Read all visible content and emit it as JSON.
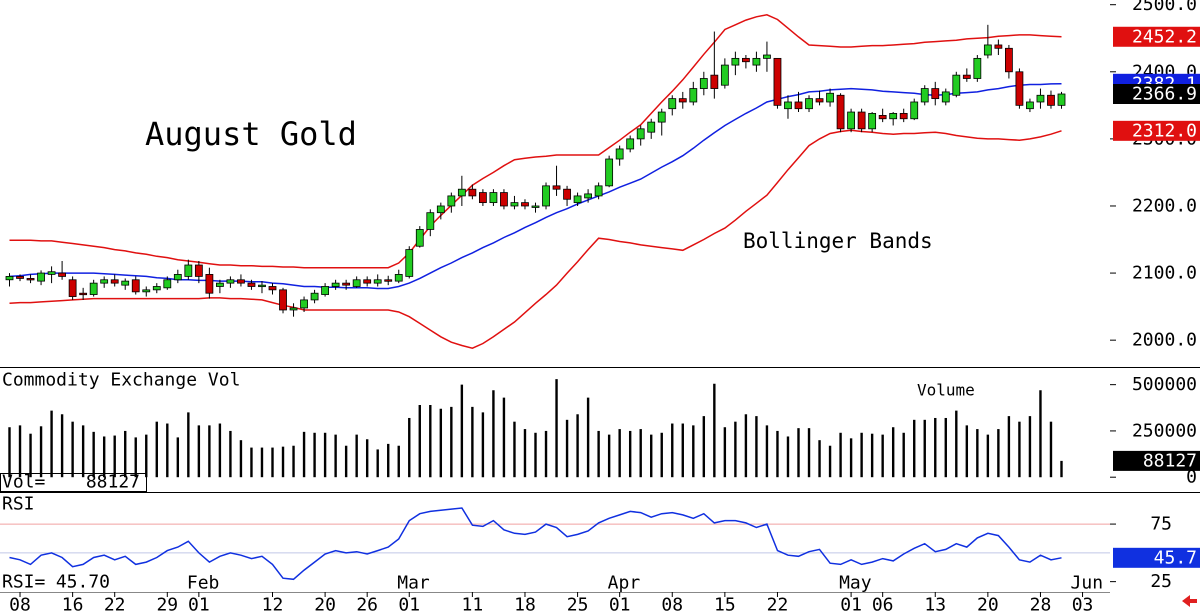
{
  "chart_data": {
    "type": "candlestick",
    "title": "August Gold",
    "annotation": "Bollinger Bands",
    "categories": [
      null,
      "08",
      null,
      null,
      null,
      null,
      "16",
      null,
      null,
      null,
      "22",
      null,
      null,
      null,
      null,
      "29",
      null,
      null,
      "01",
      null,
      null,
      null,
      null,
      null,
      null,
      "12",
      null,
      null,
      null,
      null,
      "20",
      null,
      null,
      null,
      "26",
      null,
      null,
      null,
      "01",
      null,
      null,
      null,
      null,
      null,
      "11",
      null,
      null,
      null,
      null,
      "18",
      null,
      null,
      null,
      null,
      "25",
      null,
      null,
      null,
      "01",
      null,
      null,
      null,
      null,
      "08",
      null,
      null,
      null,
      null,
      "15",
      null,
      null,
      null,
      null,
      "22",
      null,
      null,
      null,
      null,
      null,
      null,
      "01",
      null,
      null,
      "06",
      null,
      null,
      null,
      null,
      "13",
      null,
      null,
      null,
      null,
      "20",
      null,
      null,
      null,
      null,
      "28",
      null,
      null,
      null,
      "03"
    ],
    "month_labels": [
      null,
      null,
      null,
      null,
      null,
      null,
      null,
      null,
      null,
      null,
      null,
      null,
      null,
      null,
      null,
      null,
      null,
      null,
      "Feb",
      null,
      null,
      null,
      null,
      null,
      null,
      null,
      null,
      null,
      null,
      null,
      null,
      null,
      null,
      null,
      null,
      null,
      null,
      null,
      "Mar",
      null,
      null,
      null,
      null,
      null,
      null,
      null,
      null,
      null,
      null,
      null,
      null,
      null,
      null,
      null,
      null,
      null,
      null,
      null,
      "Apr",
      null,
      null,
      null,
      null,
      null,
      null,
      null,
      null,
      null,
      null,
      null,
      null,
      null,
      null,
      null,
      null,
      null,
      null,
      null,
      null,
      null,
      "May",
      null,
      null,
      null,
      null,
      null,
      null,
      null,
      null,
      null,
      null,
      null,
      null,
      null,
      null,
      null,
      null,
      null,
      null,
      null,
      null,
      null,
      "Jun"
    ],
    "ylim": [
      1960,
      2507
    ],
    "yticks": [
      {
        "value": 2000,
        "label": "2000.0"
      },
      {
        "value": 2100,
        "label": "2100.0"
      },
      {
        "value": 2200,
        "label": "2200.0"
      },
      {
        "value": 2300,
        "label": "2300.0"
      },
      {
        "value": 2400,
        "label": "2400.0"
      },
      {
        "value": 2500,
        "label": "2500.0"
      }
    ],
    "up_color": "#22cc22",
    "down_color": "#cc0000",
    "open": [
      2090,
      2095,
      2092,
      2088,
      2098,
      2100,
      2090,
      2070,
      2068,
      2085,
      2090,
      2082,
      2090,
      2072,
      2075,
      2078,
      2090,
      2095,
      2112,
      2098,
      2080,
      2085,
      2090,
      2085,
      2080,
      2080,
      2075,
      2045,
      2048,
      2060,
      2068,
      2080,
      2085,
      2080,
      2090,
      2085,
      2090,
      2088,
      2095,
      2140,
      2165,
      2190,
      2200,
      2215,
      2225,
      2220,
      2205,
      2220,
      2200,
      2205,
      2198,
      2200,
      2230,
      2225,
      2205,
      2212,
      2215,
      2230,
      2270,
      2285,
      2300,
      2310,
      2325,
      2345,
      2360,
      2355,
      2375,
      2395,
      2380,
      2410,
      2420,
      2410,
      2420,
      2420,
      2345,
      2355,
      2345,
      2360,
      2355,
      2365,
      2315,
      2340,
      2315,
      2335,
      2330,
      2338,
      2330,
      2355,
      2375,
      2355,
      2365,
      2395,
      2390,
      2425,
      2440,
      2435,
      2400,
      2345,
      2355,
      2365,
      2350,
      null,
      null
    ],
    "high": [
      2100,
      2098,
      2098,
      2104,
      2110,
      2118,
      2095,
      2078,
      2090,
      2095,
      2098,
      2092,
      2095,
      2080,
      2085,
      2095,
      2105,
      2120,
      2118,
      2108,
      2090,
      2095,
      2098,
      2090,
      2088,
      2085,
      2078,
      2055,
      2065,
      2075,
      2085,
      2090,
      2090,
      2095,
      2095,
      2098,
      2096,
      2105,
      2140,
      2170,
      2195,
      2205,
      2220,
      2245,
      2232,
      2225,
      2225,
      2225,
      2215,
      2210,
      2205,
      2235,
      2260,
      2230,
      2220,
      2225,
      2235,
      2275,
      2290,
      2305,
      2320,
      2330,
      2345,
      2365,
      2370,
      2385,
      2400,
      2460,
      2420,
      2430,
      2425,
      2430,
      2445,
      2420,
      2365,
      2370,
      2365,
      2372,
      2375,
      2368,
      2345,
      2345,
      2340,
      2345,
      2340,
      2345,
      2360,
      2380,
      2385,
      2375,
      2400,
      2405,
      2425,
      2470,
      2448,
      2440,
      2405,
      2360,
      2375,
      2372,
      2370,
      null,
      null
    ],
    "low": [
      2080,
      2088,
      2085,
      2082,
      2085,
      2090,
      2060,
      2060,
      2065,
      2078,
      2080,
      2075,
      2068,
      2065,
      2070,
      2075,
      2085,
      2090,
      2085,
      2062,
      2070,
      2078,
      2080,
      2075,
      2070,
      2068,
      2040,
      2035,
      2042,
      2055,
      2065,
      2075,
      2075,
      2078,
      2080,
      2080,
      2082,
      2085,
      2092,
      2138,
      2155,
      2180,
      2190,
      2200,
      2210,
      2200,
      2200,
      2195,
      2195,
      2195,
      2190,
      2195,
      2215,
      2200,
      2200,
      2205,
      2210,
      2228,
      2260,
      2280,
      2290,
      2300,
      2305,
      2335,
      2345,
      2350,
      2365,
      2360,
      2375,
      2395,
      2405,
      2400,
      2400,
      2345,
      2330,
      2340,
      2340,
      2350,
      2348,
      2310,
      2310,
      2310,
      2310,
      2325,
      2320,
      2325,
      2328,
      2350,
      2350,
      2350,
      2362,
      2385,
      2385,
      2420,
      2425,
      2390,
      2345,
      2340,
      2345,
      2345,
      2345,
      null,
      null
    ],
    "close": [
      2095,
      2092,
      2090,
      2100,
      2102,
      2095,
      2065,
      2068,
      2085,
      2090,
      2085,
      2088,
      2072,
      2075,
      2080,
      2090,
      2098,
      2112,
      2095,
      2070,
      2085,
      2090,
      2085,
      2080,
      2082,
      2075,
      2045,
      2048,
      2060,
      2070,
      2080,
      2085,
      2082,
      2090,
      2085,
      2090,
      2088,
      2098,
      2135,
      2165,
      2190,
      2200,
      2215,
      2225,
      2215,
      2205,
      2220,
      2200,
      2205,
      2200,
      2200,
      2230,
      2225,
      2210,
      2215,
      2218,
      2230,
      2270,
      2285,
      2300,
      2315,
      2325,
      2340,
      2360,
      2355,
      2375,
      2390,
      2375,
      2410,
      2420,
      2415,
      2420,
      2425,
      2350,
      2355,
      2345,
      2360,
      2355,
      2368,
      2315,
      2340,
      2315,
      2338,
      2330,
      2338,
      2330,
      2355,
      2375,
      2360,
      2370,
      2395,
      2390,
      2420,
      2440,
      2435,
      2400,
      2350,
      2355,
      2365,
      2350,
      2366.9,
      null,
      null
    ],
    "close_box_color": "#000000",
    "bands": [
      {
        "color": "#e01010",
        "values": [
          2149,
          2149,
          2149,
          2148,
          2148,
          2146,
          2144,
          2142,
          2140,
          2138,
          2135,
          2133,
          2130,
          2128,
          2125,
          2123,
          2120,
          2118,
          2116,
          2114,
          2112,
          2112,
          2111,
          2111,
          2110,
          2110,
          2109,
          2109,
          2108,
          2108,
          2108,
          2108,
          2108,
          2108,
          2108,
          2108,
          2108,
          2115,
          2130,
          2150,
          2170,
          2186,
          2201,
          2216,
          2231,
          2241,
          2250,
          2260,
          2269,
          2271,
          2273,
          2274,
          2276,
          2276,
          2276,
          2276,
          2276,
          2287,
          2298,
          2310,
          2321,
          2338,
          2355,
          2371,
          2388,
          2407,
          2426,
          2444,
          2463,
          2470,
          2477,
          2482,
          2485,
          2478,
          2465,
          2452,
          2440,
          2439,
          2438,
          2437,
          2437,
          2438,
          2439,
          2439,
          2440,
          2441,
          2442,
          2444,
          2445,
          2446,
          2447,
          2449,
          2450,
          2451,
          2453,
          2454,
          2455,
          2455,
          2454,
          2453,
          2452.2,
          null,
          null
        ]
      },
      {
        "color": "#1020e0",
        "values": [
          2095,
          2096,
          2098,
          2099,
          2100,
          2100,
          2100,
          2100,
          2100,
          2099,
          2098,
          2097,
          2096,
          2095,
          2093,
          2092,
          2090,
          2090,
          2089,
          2089,
          2088,
          2088,
          2088,
          2087,
          2087,
          2085,
          2084,
          2082,
          2080,
          2080,
          2079,
          2079,
          2078,
          2078,
          2078,
          2077,
          2077,
          2080,
          2085,
          2092,
          2100,
          2108,
          2115,
          2123,
          2130,
          2138,
          2145,
          2153,
          2160,
          2168,
          2175,
          2183,
          2190,
          2196,
          2203,
          2209,
          2215,
          2221,
          2228,
          2234,
          2240,
          2249,
          2258,
          2266,
          2275,
          2286,
          2298,
          2309,
          2320,
          2329,
          2338,
          2346,
          2355,
          2359,
          2363,
          2366,
          2370,
          2371,
          2373,
          2374,
          2375,
          2374,
          2373,
          2371,
          2370,
          2369,
          2368,
          2366,
          2365,
          2366,
          2368,
          2369,
          2370,
          2373,
          2375,
          2378,
          2380,
          2381,
          2381,
          2382,
          2382.1,
          null,
          null
        ]
      },
      {
        "color": "#e01010",
        "last_label": "2312.0",
        "values": [
          2055,
          2056,
          2056,
          2057,
          2058,
          2059,
          2060,
          2061,
          2062,
          2062,
          2062,
          2062,
          2062,
          2062,
          2062,
          2062,
          2062,
          2062,
          2062,
          2063,
          2063,
          2062,
          2062,
          2061,
          2060,
          2056,
          2052,
          2049,
          2045,
          2045,
          2045,
          2045,
          2045,
          2045,
          2045,
          2045,
          2045,
          2042,
          2035,
          2025,
          2015,
          2005,
          1997,
          1992,
          1988,
          1995,
          2005,
          2016,
          2027,
          2041,
          2055,
          2068,
          2082,
          2100,
          2117,
          2135,
          2152,
          2150,
          2147,
          2145,
          2142,
          2140,
          2138,
          2136,
          2134,
          2142,
          2150,
          2159,
          2167,
          2179,
          2192,
          2204,
          2216,
          2235,
          2254,
          2272,
          2290,
          2300,
          2308,
          2311,
          2313,
          2311,
          2310,
          2308,
          2307,
          2308,
          2308,
          2309,
          2310,
          2308,
          2305,
          2303,
          2301,
          2300,
          2300,
          2299,
          2298,
          2300,
          2303,
          2307,
          2312,
          null,
          null
        ]
      }
    ],
    "volume": {
      "title": "Commodity Exchange Vol",
      "label": "Volume",
      "readout_label": "Vol=",
      "color": "#000000",
      "ylim": [
        -80000,
        590000
      ],
      "yticks": [
        0,
        250000,
        500000
      ],
      "values": [
        270000,
        280000,
        235000,
        275000,
        360000,
        340000,
        300000,
        280000,
        245000,
        220000,
        225000,
        250000,
        215000,
        230000,
        300000,
        290000,
        215000,
        350000,
        280000,
        280000,
        290000,
        250000,
        200000,
        160000,
        160000,
        160000,
        165000,
        170000,
        245000,
        240000,
        240000,
        230000,
        170000,
        230000,
        205000,
        150000,
        180000,
        170000,
        320000,
        390000,
        390000,
        370000,
        380000,
        500000,
        380000,
        350000,
        470000,
        430000,
        300000,
        260000,
        240000,
        250000,
        530000,
        310000,
        340000,
        430000,
        250000,
        230000,
        260000,
        250000,
        260000,
        230000,
        240000,
        290000,
        290000,
        280000,
        330000,
        505000,
        270000,
        300000,
        340000,
        330000,
        280000,
        250000,
        220000,
        265000,
        265000,
        200000,
        170000,
        240000,
        210000,
        240000,
        235000,
        230000,
        270000,
        240000,
        310000,
        310000,
        320000,
        320000,
        360000,
        280000,
        260000,
        230000,
        260000,
        330000,
        300000,
        330000,
        470000,
        300000,
        88127,
        null,
        null
      ]
    },
    "rsi": {
      "title": "RSI",
      "readout_label": "RSI=",
      "readout_value_label": "45.70",
      "color": "#1030e0",
      "ylim": [
        16,
        102
      ],
      "yticks": [
        25,
        75
      ],
      "guides": [
        {
          "value": 75,
          "color": "#f0a0a0"
        },
        {
          "value": 50,
          "color": "#c0c8e8"
        }
      ],
      "values": [
        46,
        44,
        40,
        48,
        50,
        46,
        38,
        40,
        46,
        48,
        44,
        47,
        40,
        42,
        46,
        52,
        55,
        60,
        50,
        42,
        47,
        50,
        48,
        45,
        47,
        40,
        28,
        27,
        35,
        42,
        49,
        52,
        50,
        51,
        49,
        52,
        55,
        62,
        78,
        84,
        86,
        87,
        88,
        89,
        74,
        73,
        78,
        70,
        67,
        66,
        68,
        75,
        72,
        64,
        66,
        69,
        76,
        80,
        83,
        86,
        85,
        81,
        84,
        85,
        83,
        80,
        84,
        76,
        78,
        78,
        76,
        72,
        75,
        52,
        48,
        47,
        51,
        53,
        41,
        40,
        44,
        40,
        42,
        45,
        43,
        49,
        54,
        58,
        51,
        53,
        58,
        55,
        63,
        67,
        65,
        55,
        44,
        42,
        48,
        44,
        45.7,
        null,
        null
      ]
    }
  }
}
